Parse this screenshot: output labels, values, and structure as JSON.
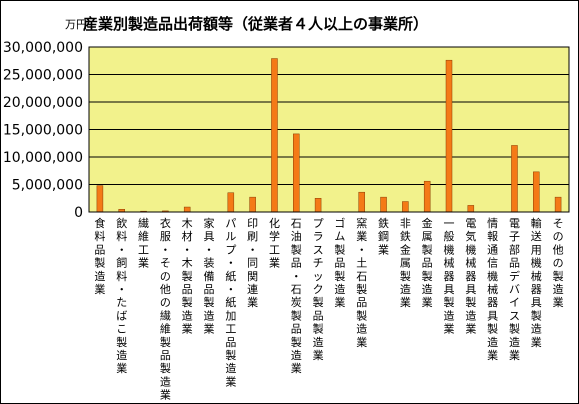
{
  "chart_data": {
    "type": "bar",
    "title": "産業別製造品出荷額等（従業者４人以上の事業所）",
    "ylabel": "万円",
    "xlabel": "",
    "ylim": [
      0,
      30000000
    ],
    "yticks": [
      "0",
      "5,000,000",
      "10,000,000",
      "15,000,000",
      "20,000,000",
      "25,000,000",
      "30,000,000"
    ],
    "ytick_values": [
      0,
      5000000,
      10000000,
      15000000,
      20000000,
      25000000,
      30000000
    ],
    "grid": true,
    "legend": "none",
    "categories": [
      "食料品製造業",
      "飲料・飼料・たばこ製造業",
      "繊維工業",
      "衣服・その他の繊維製品製造業",
      "木材・木製品製造業",
      "家具・装備品製造業",
      "パルプ・紙・紙加工品製造業",
      "印刷・同関連業",
      "化学工業",
      "石油製品・石炭製品製造業",
      "プラスチック製品製造業",
      "ゴム製品製造業",
      "窯業・土石製品製造業",
      "鉄鋼業",
      "非鉄金属製造業",
      "金属製品製造業",
      "一般機械器具製造業",
      "電気機械器具製造業",
      "情報通信機械器具製造業",
      "電子部品デバイス製造業",
      "輸送用機械器具製造業",
      "その他の製造業"
    ],
    "values": [
      4800000,
      500000,
      150000,
      200000,
      900000,
      50000,
      3500000,
      2700000,
      27900000,
      14200000,
      2500000,
      50000,
      3600000,
      2700000,
      1900000,
      5600000,
      27600000,
      1200000,
      50000,
      12100000,
      7300000,
      2700000
    ]
  },
  "colors": {
    "plot_bg": "#f2f28c",
    "bar_fill": "#f47a17",
    "bar_stroke": "#8a3a00",
    "grid": "#000000",
    "frame": "#000000"
  }
}
